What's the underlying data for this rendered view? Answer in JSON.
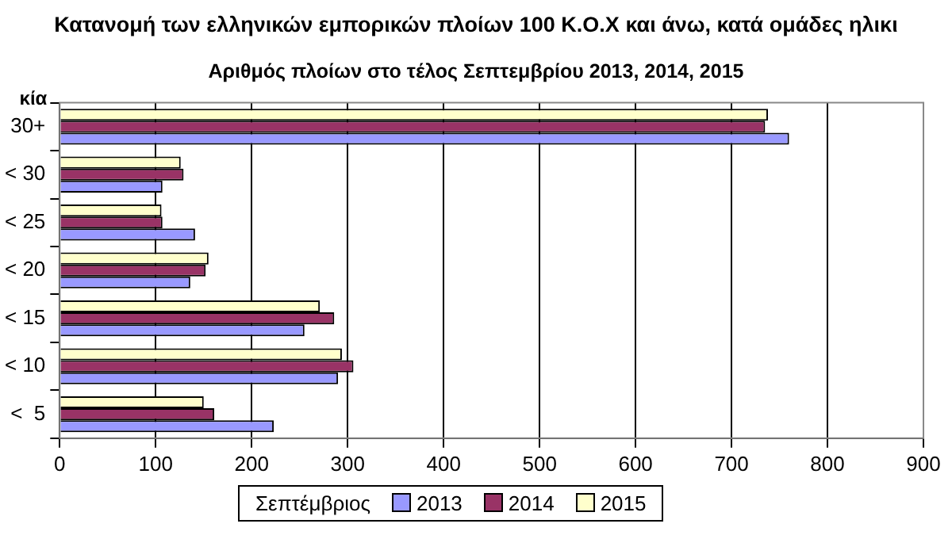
{
  "chart_data": {
    "type": "bar",
    "orientation": "horizontal",
    "title": "Κατανομή των ελληνικών εμπορικών πλοίων 100 Κ.Ο.Χ και άνω, κατά ομάδες ηλικι",
    "subtitle": "Αριθμός πλοίων στο τέλος Σεπτεμβρίου 2013, 2014, 2015",
    "ylabel": "κία",
    "legend_title": "Σεπτέμβριος",
    "categories": [
      "30+",
      "< 30",
      "< 25",
      "< 20",
      "< 15",
      "< 10",
      "<  5"
    ],
    "series": [
      {
        "name": "2013",
        "color": "#9999ff",
        "values": [
          760,
          107,
          141,
          136,
          255,
          290,
          223
        ]
      },
      {
        "name": "2014",
        "color": "#993366",
        "values": [
          735,
          129,
          107,
          152,
          286,
          306,
          161
        ]
      },
      {
        "name": "2015",
        "color": "#ffffcc",
        "values": [
          738,
          126,
          106,
          155,
          271,
          294,
          150
        ]
      }
    ],
    "xlim": [
      0,
      900
    ],
    "xticks": [
      0,
      100,
      200,
      300,
      400,
      500,
      600,
      700,
      800,
      900
    ],
    "grid": "x",
    "legend": "bottom"
  }
}
